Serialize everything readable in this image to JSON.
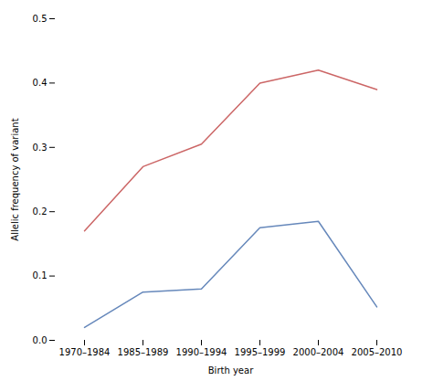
{
  "chart_data": {
    "type": "line",
    "categories": [
      "1970–1984",
      "1985–1989",
      "1990–1994",
      "1995–1999",
      "2000–2004",
      "2005–2010"
    ],
    "series": [
      {
        "color": "#cc6666",
        "values": [
          0.17,
          0.27,
          0.305,
          0.4,
          0.42,
          0.39
        ]
      },
      {
        "color": "#6688bb",
        "values": [
          0.02,
          0.075,
          0.08,
          0.175,
          0.185,
          0.052
        ]
      }
    ],
    "xlabel": "Birth year",
    "ylabel": "Allelic frequency of variant",
    "ylim": [
      0.0,
      0.5
    ],
    "yticks": [
      {
        "value": 0.0,
        "label": "0.0"
      },
      0.1,
      0.2,
      0.3,
      0.4,
      0.5
    ],
    "grid": false
  }
}
